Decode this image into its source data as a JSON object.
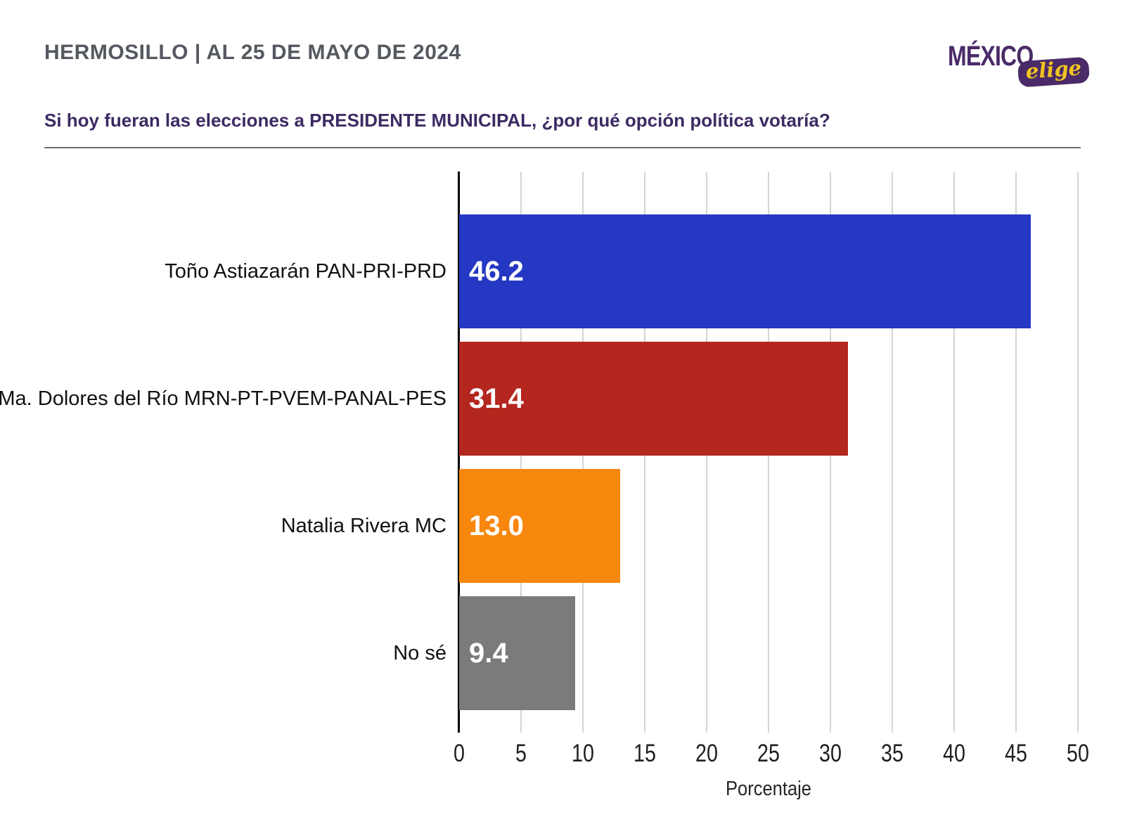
{
  "header": {
    "title": "HERMOSILLO | AL 25 DE MAYO DE 2024"
  },
  "logo": {
    "main": "MÉXICO",
    "sub": "elige",
    "purple": "#4A2A68",
    "yellow": "#F0C41E"
  },
  "question": "Si hoy fueran las elecciones a PRESIDENTE MUNICIPAL, ¿por qué opción política votaría?",
  "chart_data": {
    "type": "bar",
    "orientation": "horizontal",
    "categories": [
      "Toño Astiazarán PAN-PRI-PRD",
      "Ma. Dolores del Río MRN-PT-PVEM-PANAL-PES",
      "Natalia Rivera MC",
      "No sé"
    ],
    "values": [
      46.2,
      31.4,
      13.0,
      9.4
    ],
    "value_labels": [
      "46.2",
      "31.4",
      "13.0",
      "9.4"
    ],
    "bar_colors": [
      "#2438C4",
      "#B3271E",
      "#F8870E",
      "#7C7A7A"
    ],
    "xlabel": "Porcentaje",
    "xlim": [
      0,
      50
    ],
    "xticks": [
      0,
      5,
      10,
      15,
      20,
      25,
      30,
      35,
      40,
      45,
      50
    ],
    "grid": true,
    "gridline_color": "#D4D4D4",
    "axis_color": "#000000",
    "value_label_color": "#FFFFFF",
    "legend": null,
    "title": ""
  }
}
